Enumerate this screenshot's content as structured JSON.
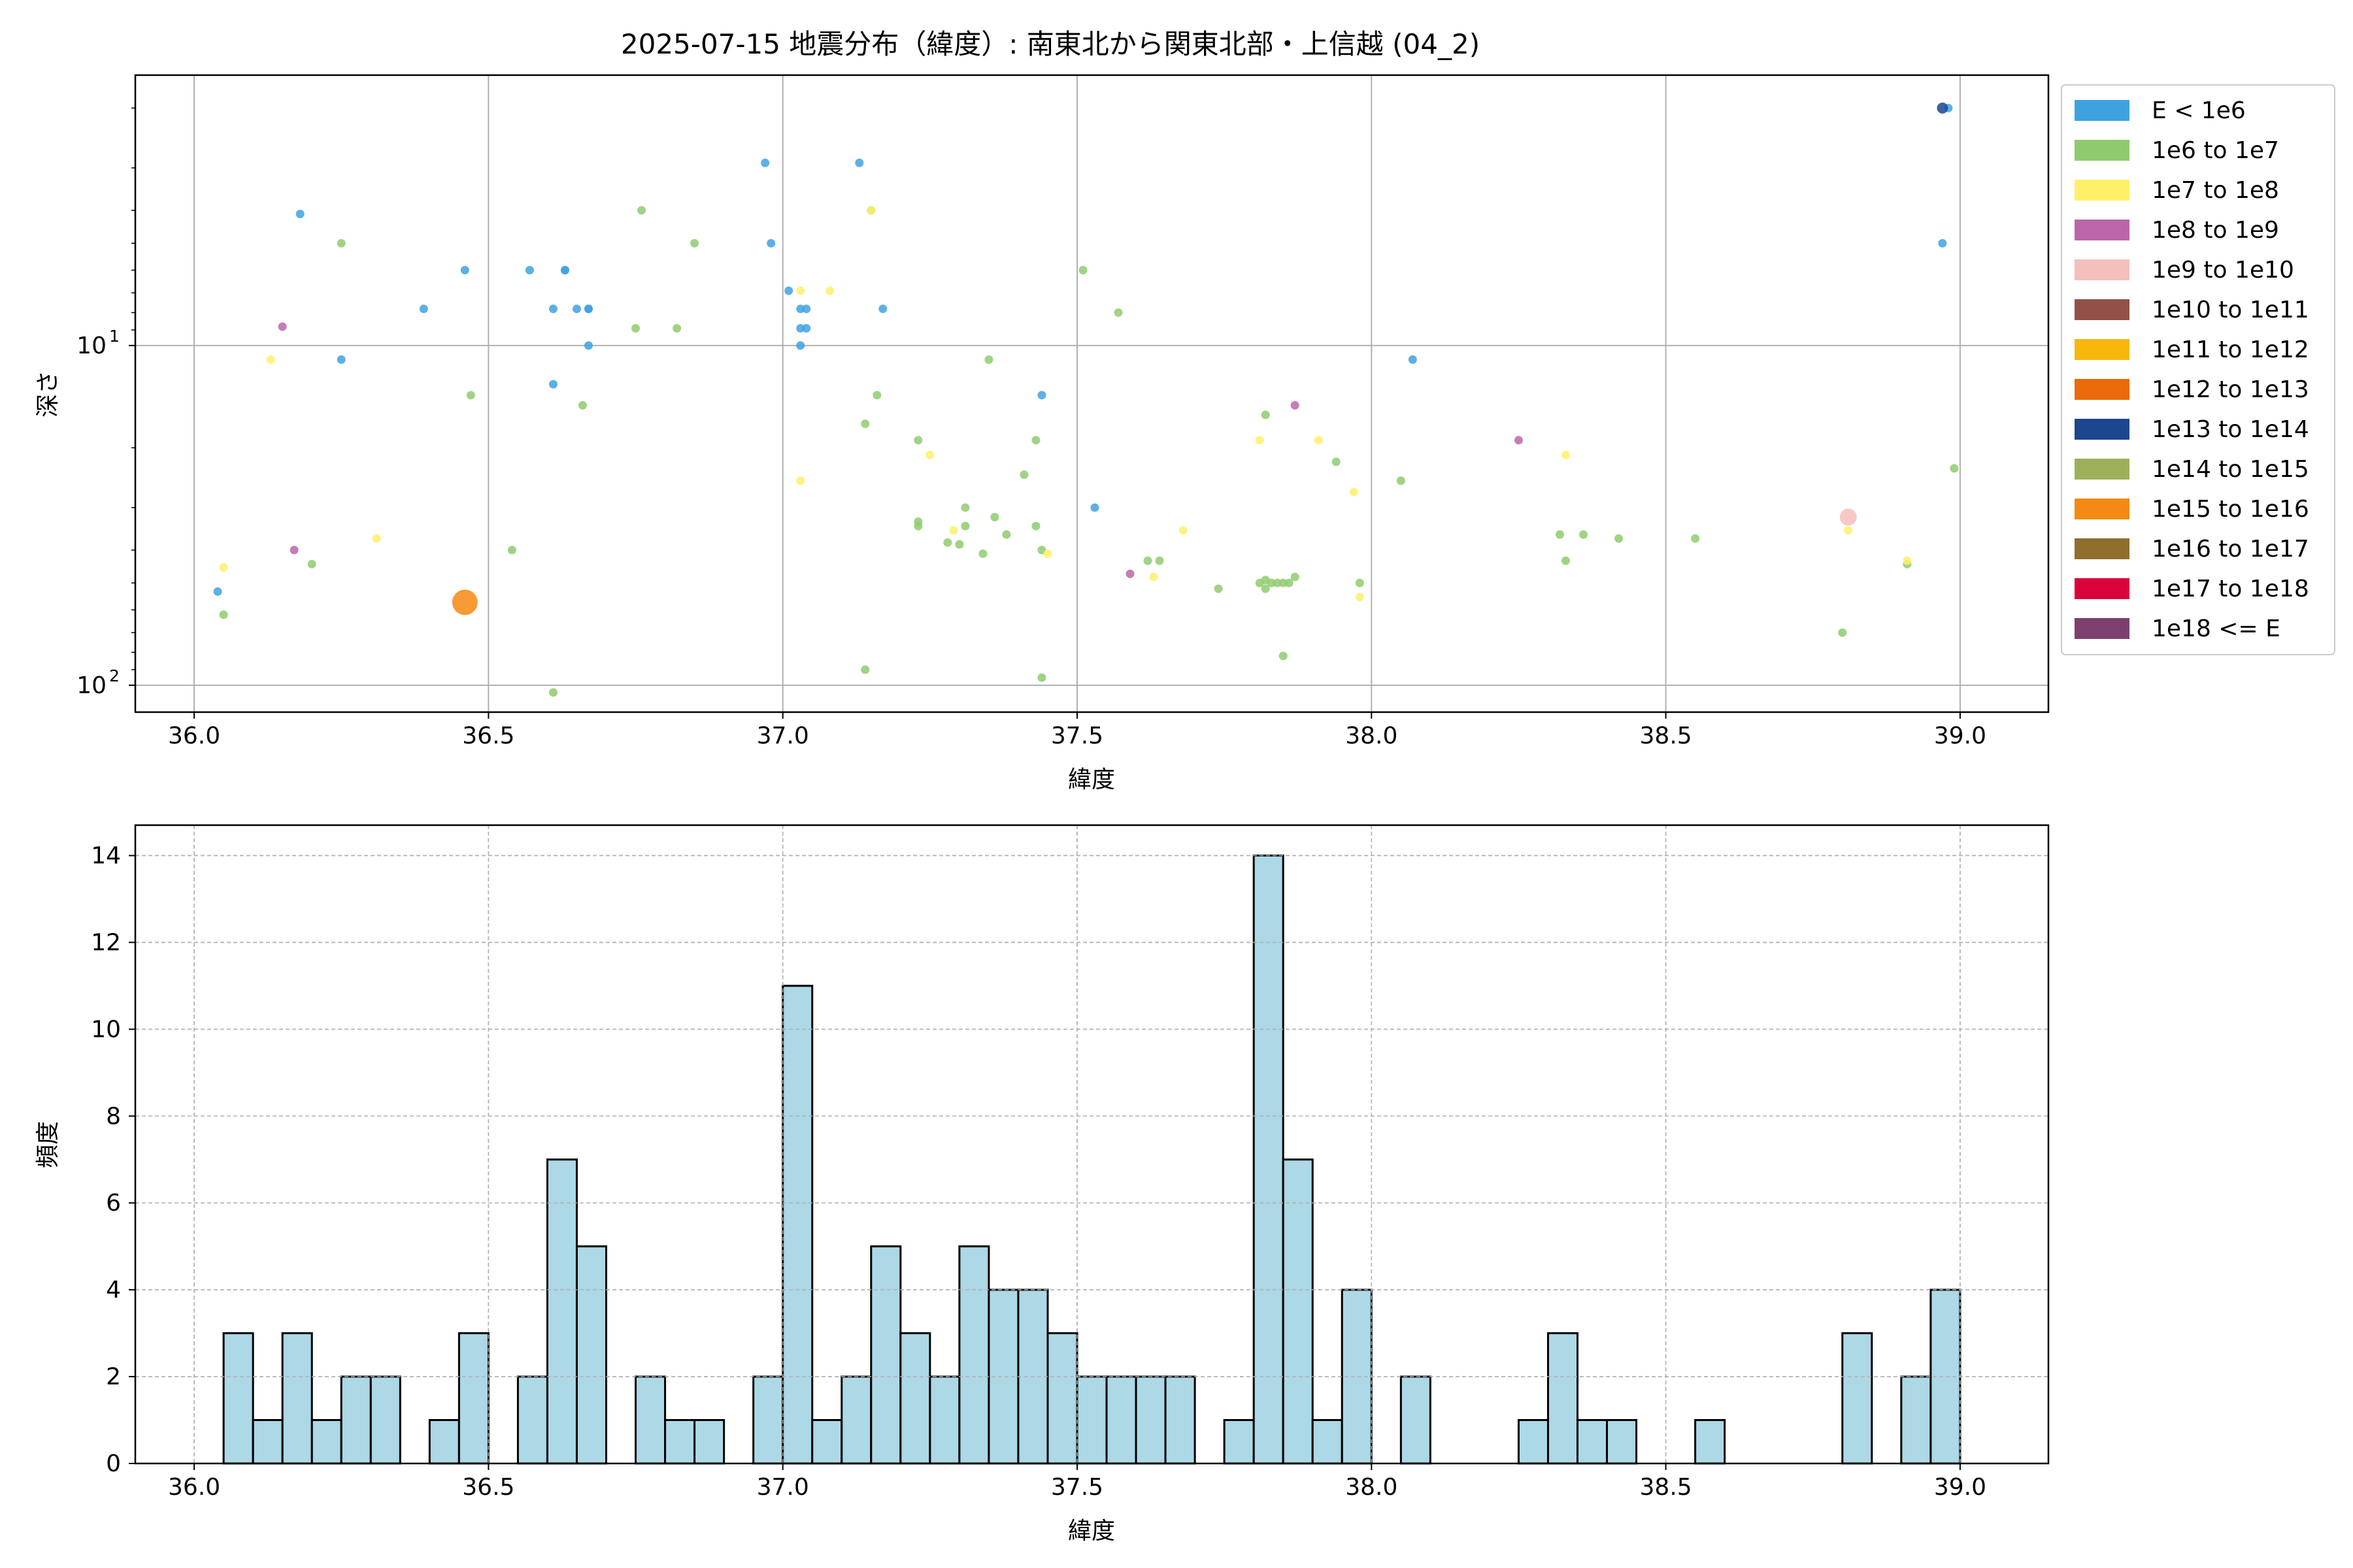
{
  "chart_data": [
    {
      "type": "scatter",
      "title": "2025-07-15 地震分布（緯度）: 南東北から関東北部・上信越 (04_2)",
      "xlabel": "緯度",
      "ylabel": "深さ",
      "xlim": [
        35.9,
        39.15
      ],
      "ylim": [
        120,
        1.6
      ],
      "yscale": "log",
      "y_inverted": true,
      "grid": true,
      "xticks": [
        "36.0",
        "36.5",
        "37.0",
        "37.5",
        "38.0",
        "38.5",
        "39.0"
      ],
      "xtick_values": [
        36.0,
        36.5,
        37.0,
        37.5,
        38.0,
        38.5,
        39.0
      ],
      "yticks": [
        {
          "value": 10,
          "base": "10",
          "exp": "1"
        },
        {
          "value": 100,
          "base": "10",
          "exp": "2"
        }
      ],
      "legend_position": "outside-right",
      "legend": [
        {
          "label": "E < 1e6",
          "color": "#3fa2e0"
        },
        {
          "label": "1e6 to 1e7",
          "color": "#8fcb6e"
        },
        {
          "label": "1e7 to 1e8",
          "color": "#fff06a"
        },
        {
          "label": "1e8 to 1e9",
          "color": "#bb66aa"
        },
        {
          "label": "1e9 to 1e10",
          "color": "#f4c0bb"
        },
        {
          "label": "1e10 to 1e11",
          "color": "#935049"
        },
        {
          "label": "1e11 to 1e12",
          "color": "#f8b70d"
        },
        {
          "label": "1e12 to 1e13",
          "color": "#ea6a0c"
        },
        {
          "label": "1e13 to 1e14",
          "color": "#1c468e"
        },
        {
          "label": "1e14 to 1e15",
          "color": "#9db059"
        },
        {
          "label": "1e15 to 1e16",
          "color": "#f48a13"
        },
        {
          "label": "1e16 to 1e17",
          "color": "#906e2d"
        },
        {
          "label": "1e17 to 1e18",
          "color": "#d9043a"
        },
        {
          "label": "1e18 <= E",
          "color": "#7d406e"
        }
      ],
      "points": [
        {
          "x": 36.04,
          "y": 53,
          "c": 0
        },
        {
          "x": 36.18,
          "y": 4.1,
          "c": 0
        },
        {
          "x": 36.25,
          "y": 11,
          "c": 0
        },
        {
          "x": 36.39,
          "y": 7.8,
          "c": 0
        },
        {
          "x": 36.46,
          "y": 6,
          "c": 0
        },
        {
          "x": 36.57,
          "y": 6,
          "c": 0
        },
        {
          "x": 36.61,
          "y": 7.8,
          "c": 0
        },
        {
          "x": 36.61,
          "y": 13,
          "c": 0
        },
        {
          "x": 36.63,
          "y": 6,
          "c": 0
        },
        {
          "x": 36.63,
          "y": 6,
          "c": 0
        },
        {
          "x": 36.65,
          "y": 7.8,
          "c": 0
        },
        {
          "x": 36.67,
          "y": 7.8,
          "c": 0
        },
        {
          "x": 36.67,
          "y": 7.8,
          "c": 0
        },
        {
          "x": 36.67,
          "y": 10,
          "c": 0
        },
        {
          "x": 36.97,
          "y": 2.9,
          "c": 0
        },
        {
          "x": 36.98,
          "y": 5,
          "c": 0
        },
        {
          "x": 37.01,
          "y": 6.9,
          "c": 0
        },
        {
          "x": 37.03,
          "y": 7.8,
          "c": 0
        },
        {
          "x": 37.04,
          "y": 7.8,
          "c": 0
        },
        {
          "x": 37.03,
          "y": 8.9,
          "c": 0
        },
        {
          "x": 37.04,
          "y": 8.9,
          "c": 0
        },
        {
          "x": 37.03,
          "y": 10,
          "c": 0
        },
        {
          "x": 37.13,
          "y": 2.9,
          "c": 0
        },
        {
          "x": 37.17,
          "y": 7.8,
          "c": 0
        },
        {
          "x": 37.44,
          "y": 14,
          "c": 0
        },
        {
          "x": 37.53,
          "y": 30,
          "c": 0
        },
        {
          "x": 38.07,
          "y": 11,
          "c": 0
        },
        {
          "x": 38.97,
          "y": 5,
          "c": 0
        },
        {
          "x": 38.98,
          "y": 2,
          "c": 0
        },
        {
          "x": 36.05,
          "y": 62,
          "c": 1
        },
        {
          "x": 36.2,
          "y": 44,
          "c": 1
        },
        {
          "x": 36.25,
          "y": 5,
          "c": 1
        },
        {
          "x": 36.47,
          "y": 14,
          "c": 1
        },
        {
          "x": 36.54,
          "y": 40,
          "c": 1
        },
        {
          "x": 36.61,
          "y": 105,
          "c": 1
        },
        {
          "x": 36.66,
          "y": 15,
          "c": 1
        },
        {
          "x": 36.75,
          "y": 8.9,
          "c": 1
        },
        {
          "x": 36.76,
          "y": 4,
          "c": 1
        },
        {
          "x": 36.82,
          "y": 8.9,
          "c": 1
        },
        {
          "x": 36.85,
          "y": 5,
          "c": 1
        },
        {
          "x": 37.14,
          "y": 17,
          "c": 1
        },
        {
          "x": 37.14,
          "y": 90,
          "c": 1
        },
        {
          "x": 37.15,
          "y": 4,
          "c": 1
        },
        {
          "x": 37.16,
          "y": 14,
          "c": 1
        },
        {
          "x": 37.23,
          "y": 19,
          "c": 1
        },
        {
          "x": 37.23,
          "y": 33,
          "c": 1
        },
        {
          "x": 37.23,
          "y": 34,
          "c": 1
        },
        {
          "x": 37.28,
          "y": 38,
          "c": 1
        },
        {
          "x": 37.3,
          "y": 38.5,
          "c": 1
        },
        {
          "x": 37.31,
          "y": 30,
          "c": 1
        },
        {
          "x": 37.31,
          "y": 34,
          "c": 1
        },
        {
          "x": 37.34,
          "y": 41,
          "c": 1
        },
        {
          "x": 37.35,
          "y": 11,
          "c": 1
        },
        {
          "x": 37.36,
          "y": 32,
          "c": 1
        },
        {
          "x": 37.38,
          "y": 36,
          "c": 1
        },
        {
          "x": 37.41,
          "y": 24,
          "c": 1
        },
        {
          "x": 37.43,
          "y": 19,
          "c": 1
        },
        {
          "x": 37.43,
          "y": 34,
          "c": 1
        },
        {
          "x": 37.44,
          "y": 40,
          "c": 1
        },
        {
          "x": 37.44,
          "y": 95,
          "c": 1
        },
        {
          "x": 37.51,
          "y": 6,
          "c": 1
        },
        {
          "x": 37.57,
          "y": 8,
          "c": 1
        },
        {
          "x": 37.62,
          "y": 43,
          "c": 1
        },
        {
          "x": 37.64,
          "y": 43,
          "c": 1
        },
        {
          "x": 37.74,
          "y": 52,
          "c": 1
        },
        {
          "x": 37.81,
          "y": 50,
          "c": 1
        },
        {
          "x": 37.82,
          "y": 16,
          "c": 1
        },
        {
          "x": 37.82,
          "y": 49,
          "c": 1
        },
        {
          "x": 37.82,
          "y": 52,
          "c": 1
        },
        {
          "x": 37.83,
          "y": 50,
          "c": 1
        },
        {
          "x": 37.84,
          "y": 50,
          "c": 1
        },
        {
          "x": 37.85,
          "y": 50,
          "c": 1
        },
        {
          "x": 37.86,
          "y": 50,
          "c": 1
        },
        {
          "x": 37.85,
          "y": 82,
          "c": 1
        },
        {
          "x": 37.87,
          "y": 48,
          "c": 1
        },
        {
          "x": 37.94,
          "y": 22,
          "c": 1
        },
        {
          "x": 37.98,
          "y": 50,
          "c": 1
        },
        {
          "x": 38.05,
          "y": 25,
          "c": 1
        },
        {
          "x": 38.32,
          "y": 36,
          "c": 1
        },
        {
          "x": 38.33,
          "y": 43,
          "c": 1
        },
        {
          "x": 38.36,
          "y": 36,
          "c": 1
        },
        {
          "x": 38.42,
          "y": 37,
          "c": 1
        },
        {
          "x": 38.55,
          "y": 37,
          "c": 1
        },
        {
          "x": 38.8,
          "y": 70,
          "c": 1
        },
        {
          "x": 38.91,
          "y": 44,
          "c": 1
        },
        {
          "x": 38.99,
          "y": 23,
          "c": 1
        },
        {
          "x": 36.05,
          "y": 45,
          "c": 2
        },
        {
          "x": 36.13,
          "y": 11,
          "c": 2
        },
        {
          "x": 36.31,
          "y": 37,
          "c": 2
        },
        {
          "x": 37.03,
          "y": 6.9,
          "c": 2
        },
        {
          "x": 37.03,
          "y": 25,
          "c": 2
        },
        {
          "x": 37.08,
          "y": 6.9,
          "c": 2
        },
        {
          "x": 37.15,
          "y": 4,
          "c": 2
        },
        {
          "x": 37.25,
          "y": 21,
          "c": 2
        },
        {
          "x": 37.29,
          "y": 35,
          "c": 2
        },
        {
          "x": 37.45,
          "y": 41,
          "c": 2
        },
        {
          "x": 37.63,
          "y": 48,
          "c": 2
        },
        {
          "x": 37.68,
          "y": 35,
          "c": 2
        },
        {
          "x": 37.81,
          "y": 19,
          "c": 2
        },
        {
          "x": 37.91,
          "y": 19,
          "c": 2
        },
        {
          "x": 37.97,
          "y": 27,
          "c": 2
        },
        {
          "x": 37.98,
          "y": 55,
          "c": 2
        },
        {
          "x": 38.33,
          "y": 21,
          "c": 2
        },
        {
          "x": 38.81,
          "y": 35,
          "c": 2
        },
        {
          "x": 38.91,
          "y": 43,
          "c": 2
        },
        {
          "x": 36.15,
          "y": 8.8,
          "c": 3
        },
        {
          "x": 36.17,
          "y": 40,
          "c": 3
        },
        {
          "x": 37.59,
          "y": 47,
          "c": 3
        },
        {
          "x": 37.87,
          "y": 15,
          "c": 3
        },
        {
          "x": 38.25,
          "y": 19,
          "c": 3
        },
        {
          "x": 38.81,
          "y": 32,
          "c": 4,
          "s": 2
        },
        {
          "x": 38.97,
          "y": 2,
          "c": 8,
          "s": 1.3
        },
        {
          "x": 36.46,
          "y": 57,
          "c": 10,
          "s": 3
        }
      ]
    },
    {
      "type": "bar",
      "subtype": "histogram",
      "xlabel": "緯度",
      "ylabel": "頻度",
      "xlim": [
        35.9,
        39.15
      ],
      "ylim": [
        0,
        14.7
      ],
      "grid": true,
      "bar_color": "#add8e6",
      "edge_color": "#000000",
      "bin_start": 36.0,
      "bin_width": 0.05,
      "xticks": [
        "36.0",
        "36.5",
        "37.0",
        "37.5",
        "38.0",
        "38.5",
        "39.0"
      ],
      "xtick_values": [
        36.0,
        36.5,
        37.0,
        37.5,
        38.0,
        38.5,
        39.0
      ],
      "yticks": [
        "0",
        "2",
        "4",
        "6",
        "8",
        "10",
        "12",
        "14"
      ],
      "ytick_values": [
        0,
        2,
        4,
        6,
        8,
        10,
        12,
        14
      ],
      "counts": [
        0,
        3,
        1,
        3,
        1,
        2,
        2,
        0,
        1,
        3,
        0,
        2,
        7,
        5,
        0,
        2,
        1,
        1,
        0,
        2,
        11,
        1,
        2,
        5,
        3,
        2,
        5,
        4,
        4,
        3,
        2,
        2,
        2,
        2,
        0,
        1,
        14,
        7,
        1,
        4,
        0,
        2,
        0,
        0,
        0,
        1,
        3,
        1,
        1,
        0,
        0,
        1,
        0,
        0,
        0,
        0,
        3,
        0,
        2,
        4
      ]
    }
  ]
}
